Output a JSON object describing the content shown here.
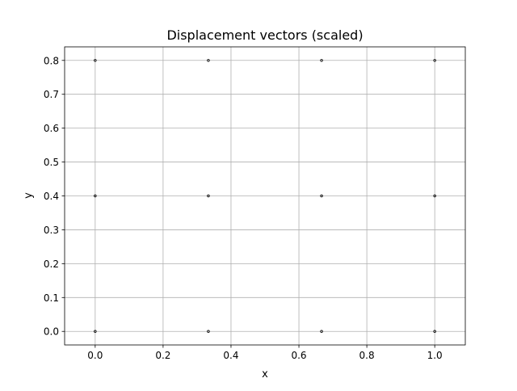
{
  "chart_data": {
    "type": "scatter",
    "title": "Displacement vectors (scaled)",
    "xlabel": "x",
    "ylabel": "y",
    "xlim": [
      -0.09,
      1.09
    ],
    "ylim": [
      -0.04,
      0.84
    ],
    "xticks": [
      0.0,
      0.2,
      0.4,
      0.6,
      0.8,
      1.0
    ],
    "xtick_labels": [
      "0.0",
      "0.2",
      "0.4",
      "0.6",
      "0.8",
      "1.0"
    ],
    "yticks": [
      0.0,
      0.1,
      0.2,
      0.3,
      0.4,
      0.5,
      0.6,
      0.7,
      0.8
    ],
    "ytick_labels": [
      "0.0",
      "0.1",
      "0.2",
      "0.3",
      "0.4",
      "0.5",
      "0.6",
      "0.7",
      "0.8"
    ],
    "grid": true,
    "points": [
      {
        "x": 0.0,
        "y": 0.8
      },
      {
        "x": 0.3333,
        "y": 0.8
      },
      {
        "x": 0.6667,
        "y": 0.8
      },
      {
        "x": 1.0,
        "y": 0.8
      },
      {
        "x": 0.0,
        "y": 0.4
      },
      {
        "x": 0.3333,
        "y": 0.4
      },
      {
        "x": 0.6667,
        "y": 0.4
      },
      {
        "x": 1.0,
        "y": 0.4
      },
      {
        "x": 0.0,
        "y": 0.0
      },
      {
        "x": 0.3333,
        "y": 0.0
      },
      {
        "x": 0.6667,
        "y": 0.0
      },
      {
        "x": 1.0,
        "y": 0.0
      }
    ],
    "colors": {
      "grid": "#b0b0b0",
      "axes": "#000000",
      "marker": "#000000"
    }
  }
}
